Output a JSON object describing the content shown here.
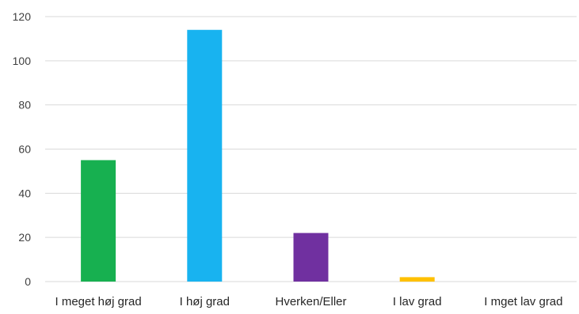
{
  "chart_data": {
    "type": "bar",
    "categories": [
      "I meget høj grad",
      "I høj grad",
      "Hverken/Eller",
      "I lav grad",
      "I mget lav grad"
    ],
    "values": [
      55,
      114,
      22,
      2,
      0
    ],
    "colors": [
      "#17b050",
      "#18b3f0",
      "#7030a0",
      "#ffc000",
      "#a5a5a5"
    ],
    "ylim": [
      0,
      120
    ],
    "yticks": [
      0,
      20,
      40,
      60,
      80,
      100,
      120
    ],
    "grid": true,
    "legend": "none"
  }
}
